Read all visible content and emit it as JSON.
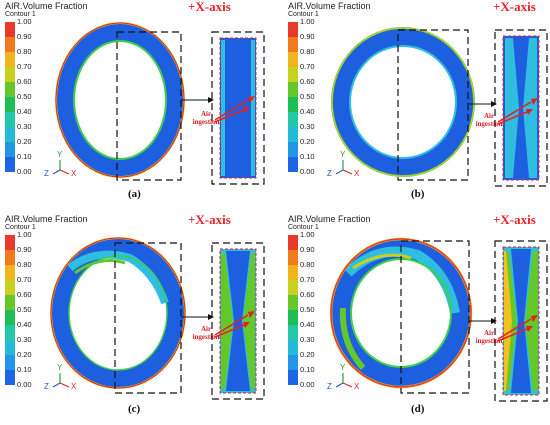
{
  "legend": {
    "title": "AIR.Volume Fraction",
    "subtitle": "Contour 1",
    "ticks": [
      "1.00",
      "0.90",
      "0.80",
      "0.70",
      "0.60",
      "0.50",
      "0.40",
      "0.30",
      "0.20",
      "0.10",
      "0.00"
    ],
    "colors": [
      "#e8392a",
      "#f27a1e",
      "#f0b41c",
      "#c8d21e",
      "#64c82a",
      "#1fbe55",
      "#22c8a8",
      "#22bcd8",
      "#2296e6",
      "#1e64e6"
    ]
  },
  "axis_label": "+X-axis",
  "annotation": {
    "line1": "Air",
    "line2": "ingestion"
  },
  "triad": {
    "y": "Y",
    "z": "Z",
    "x": "X"
  },
  "panels": [
    {
      "letter": "(a)"
    },
    {
      "letter": "(b)"
    },
    {
      "letter": "(c)"
    },
    {
      "letter": "(d)"
    }
  ]
}
